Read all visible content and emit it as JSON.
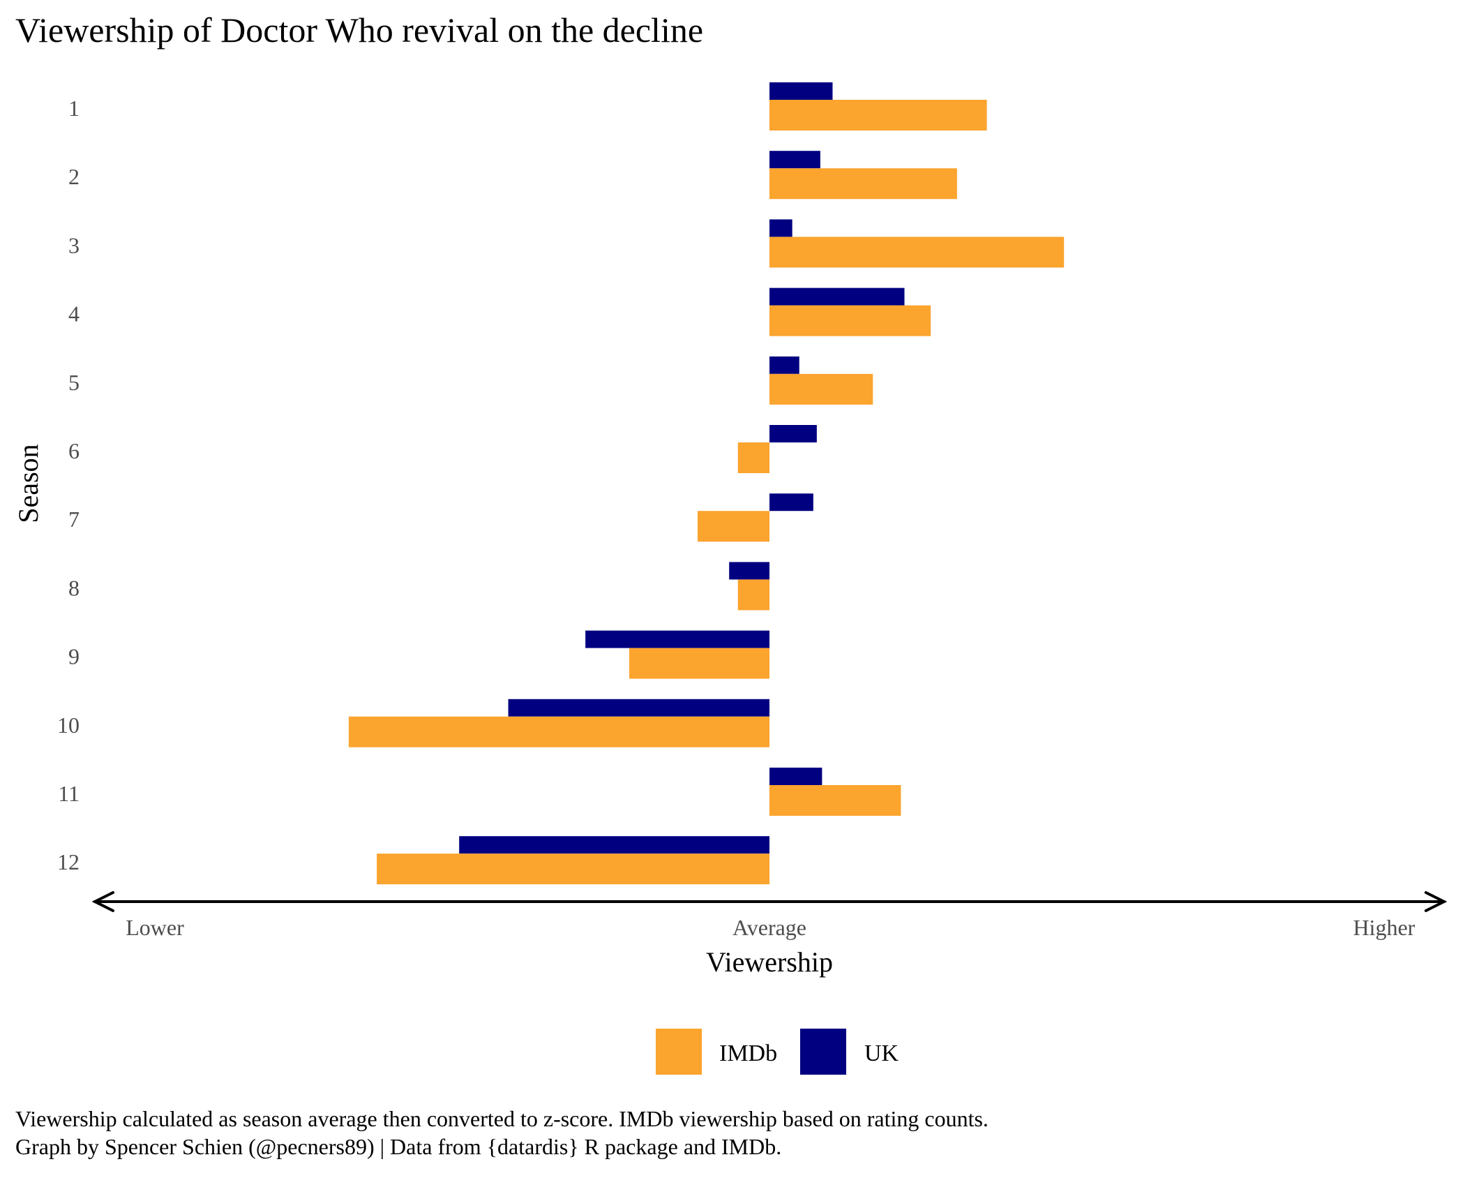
{
  "colors": {
    "IMDb": "#FBA42E",
    "UK": "#000080",
    "axis": "#000000",
    "tick_text": "#4d4d4d"
  },
  "chart_data": {
    "type": "bar",
    "orientation": "horizontal",
    "title": "Viewership of Doctor Who revival on the decline",
    "xlabel": "Viewership",
    "ylabel": "Season",
    "categories": [
      "1",
      "2",
      "3",
      "4",
      "5",
      "6",
      "7",
      "8",
      "9",
      "10",
      "11",
      "12"
    ],
    "series": [
      {
        "name": "UK",
        "values": [
          0.36,
          0.29,
          0.13,
          0.77,
          0.17,
          0.27,
          0.25,
          -0.23,
          -1.05,
          -1.49,
          0.3,
          -1.77
        ]
      },
      {
        "name": "IMDb",
        "values": [
          1.24,
          1.07,
          1.68,
          0.92,
          0.59,
          -0.18,
          -0.41,
          -0.18,
          -0.8,
          -2.4,
          0.75,
          -2.24
        ]
      }
    ],
    "xlim": [
      -2.88,
      2.88
    ],
    "x_arrow_labels": [
      "Lower",
      "Average",
      "Higher"
    ],
    "legend": {
      "position": "bottom",
      "order": [
        "IMDb",
        "UK"
      ]
    },
    "grid": false,
    "caption": [
      "Viewership calculated as season average then converted to z-score. IMDb viewership based on rating counts.",
      "Graph by Spencer Schien (@pecners89) | Data from {datardis} R package and IMDb."
    ]
  }
}
